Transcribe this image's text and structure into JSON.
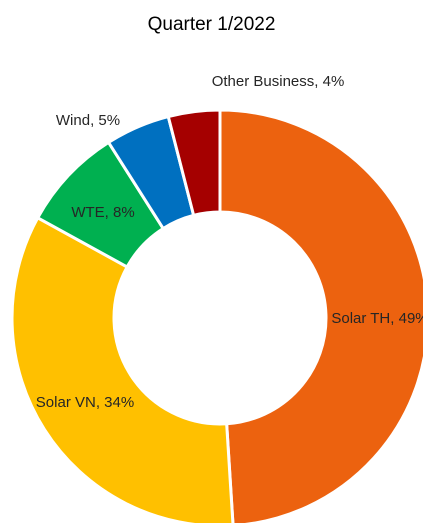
{
  "chart_data": {
    "type": "donut",
    "title": "Quarter 1/2022",
    "values": [
      49,
      34,
      8,
      5,
      4
    ],
    "value_labels": [
      "Solar TH, 49%",
      "Solar VN, 34%",
      "WTE, 8%",
      "Wind, 5%",
      "Other Business, 4%"
    ],
    "colors": [
      "#EC620F",
      "#FFC000",
      "#00B050",
      "#0070C0",
      "#A50000"
    ]
  }
}
